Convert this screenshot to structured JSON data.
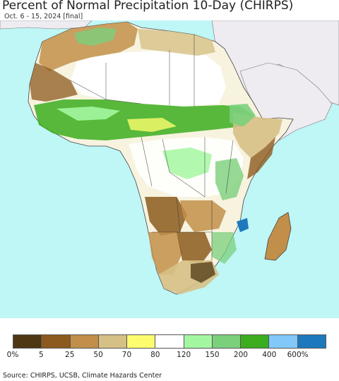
{
  "header": {
    "title": "Percent of Normal Precipitation 10-Day (CHIRPS)",
    "subtitle": "Oct. 6 - 15, 2024 [final]"
  },
  "map": {
    "ocean_color": "#bff6f6",
    "outside_region_color": "#eeebf1",
    "no_data_color": "#ffffff"
  },
  "legend": {
    "colors": [
      "#4e3713",
      "#8c5a1e",
      "#c28f4a",
      "#d6c086",
      "#fdfc6e",
      "#ffffff",
      "#a4f7a1",
      "#7bd07c",
      "#3bad1f",
      "#82c9fa",
      "#1e79bc"
    ],
    "labels": [
      "0%",
      "5",
      "25",
      "50",
      "70",
      "80",
      "120",
      "150",
      "200",
      "400",
      "600%"
    ]
  },
  "footer": {
    "source": "Source: CHIRPS, UCSB, Climate Hazards Center"
  }
}
